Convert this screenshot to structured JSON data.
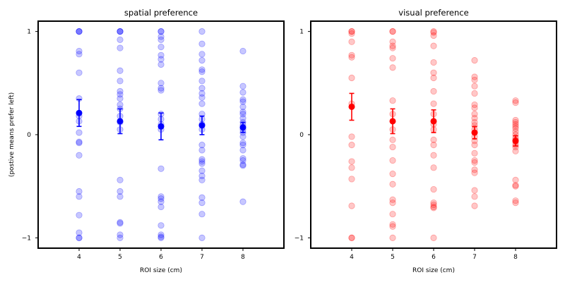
{
  "chart_data": [
    {
      "type": "scatter",
      "title": "spatial preference",
      "xlabel": "ROI size (cm)",
      "ylabel": "(postive means prefer left)",
      "xlim": [
        3,
        9
      ],
      "ylim": [
        -1.1,
        1.1
      ],
      "xticks": [
        4,
        5,
        6,
        7,
        8
      ],
      "yticks": [
        -1,
        0,
        1
      ],
      "ytick_labels": [
        "−1",
        "0",
        "1"
      ],
      "color": "#0000ff",
      "grid": false,
      "points": {
        "4": [
          1,
          1,
          1,
          0.81,
          0.78,
          0.6,
          0.35,
          0.18,
          0.13,
          0.02,
          -0.07,
          -0.08,
          -0.2,
          -0.55,
          -0.6,
          -0.78,
          -0.95,
          -1,
          -1
        ],
        "5": [
          1,
          1,
          1,
          0.92,
          0.84,
          0.62,
          0.52,
          0.42,
          0.39,
          0.35,
          0.29,
          0.25,
          0.18,
          0.12,
          0.05,
          -0.44,
          -0.55,
          -0.6,
          -0.85,
          -0.86,
          -0.97,
          -1
        ],
        "6": [
          1,
          1,
          0.95,
          0.92,
          0.85,
          0.77,
          0.73,
          0.68,
          0.5,
          0.45,
          0.43,
          0.2,
          0.15,
          0.1,
          0.05,
          -0.33,
          -0.6,
          -0.62,
          -0.65,
          -0.7,
          -0.88,
          -0.97,
          -0.99,
          -1
        ],
        "7": [
          1,
          0.88,
          0.78,
          0.72,
          0.63,
          0.61,
          0.52,
          0.45,
          0.4,
          0.36,
          0.3,
          0.2,
          0.15,
          0.1,
          0.05,
          -0.1,
          -0.15,
          -0.24,
          -0.26,
          -0.28,
          -0.35,
          -0.4,
          -0.44,
          -0.61,
          -0.66,
          -0.77,
          -1
        ],
        "8": [
          0.81,
          0.47,
          0.41,
          0.34,
          0.32,
          0.27,
          0.22,
          0.2,
          0.16,
          0.12,
          0.09,
          0.05,
          0.02,
          -0.02,
          -0.08,
          -0.1,
          -0.15,
          -0.23,
          -0.25,
          -0.29,
          -0.3,
          -0.65
        ]
      },
      "means": [
        {
          "x": 4,
          "y": 0.21,
          "err": 0.13
        },
        {
          "x": 5,
          "y": 0.13,
          "err": 0.12
        },
        {
          "x": 6,
          "y": 0.08,
          "err": 0.13
        },
        {
          "x": 7,
          "y": 0.09,
          "err": 0.09
        },
        {
          "x": 8,
          "y": 0.07,
          "err": 0.05
        }
      ]
    },
    {
      "type": "scatter",
      "title": "visual preference",
      "xlabel": "ROI size (cm)",
      "ylabel": "",
      "xlim": [
        3,
        9
      ],
      "ylim": [
        -1.1,
        1.1
      ],
      "xticks": [
        4,
        5,
        6,
        7,
        8
      ],
      "yticks": [
        -1,
        0,
        1
      ],
      "ytick_labels": [
        "−1",
        "0",
        "1"
      ],
      "color": "#ff0000",
      "grid": false,
      "points": {
        "4": [
          1,
          1,
          0.98,
          0.9,
          0.77,
          0.75,
          0.55,
          0.3,
          -0.02,
          -0.1,
          -0.26,
          -0.32,
          -0.43,
          -0.69,
          -1,
          -1
        ],
        "5": [
          1,
          1,
          0.9,
          0.86,
          0.84,
          0.74,
          0.65,
          0.33,
          0.2,
          0.05,
          -0.05,
          -0.12,
          -0.25,
          -0.38,
          -0.48,
          -0.63,
          -0.66,
          -0.77,
          -0.87,
          -0.89,
          -1
        ],
        "6": [
          1,
          0.99,
          0.96,
          0.86,
          0.7,
          0.6,
          0.55,
          0.42,
          0.3,
          0.2,
          0.1,
          0.05,
          -0.05,
          -0.1,
          -0.2,
          -0.32,
          -0.53,
          -0.66,
          -0.68,
          -0.7,
          -0.71,
          -1
        ],
        "7": [
          0.72,
          0.56,
          0.53,
          0.47,
          0.4,
          0.29,
          0.26,
          0.2,
          0.16,
          0.12,
          0.09,
          0.05,
          -0.02,
          -0.06,
          -0.1,
          -0.18,
          -0.25,
          -0.27,
          -0.34,
          -0.37,
          -0.54,
          -0.6,
          -0.69
        ],
        "8": [
          0.33,
          0.31,
          0.14,
          0.12,
          0.1,
          0.08,
          0.06,
          0.03,
          0.0,
          -0.03,
          -0.05,
          -0.07,
          -0.1,
          -0.12,
          -0.16,
          -0.44,
          -0.49,
          -0.5,
          -0.64,
          -0.66
        ]
      },
      "means": [
        {
          "x": 4,
          "y": 0.27,
          "err": 0.13
        },
        {
          "x": 5,
          "y": 0.13,
          "err": 0.12
        },
        {
          "x": 6,
          "y": 0.13,
          "err": 0.11
        },
        {
          "x": 7,
          "y": 0.02,
          "err": 0.06
        },
        {
          "x": 8,
          "y": -0.06,
          "err": 0.05
        }
      ]
    }
  ]
}
